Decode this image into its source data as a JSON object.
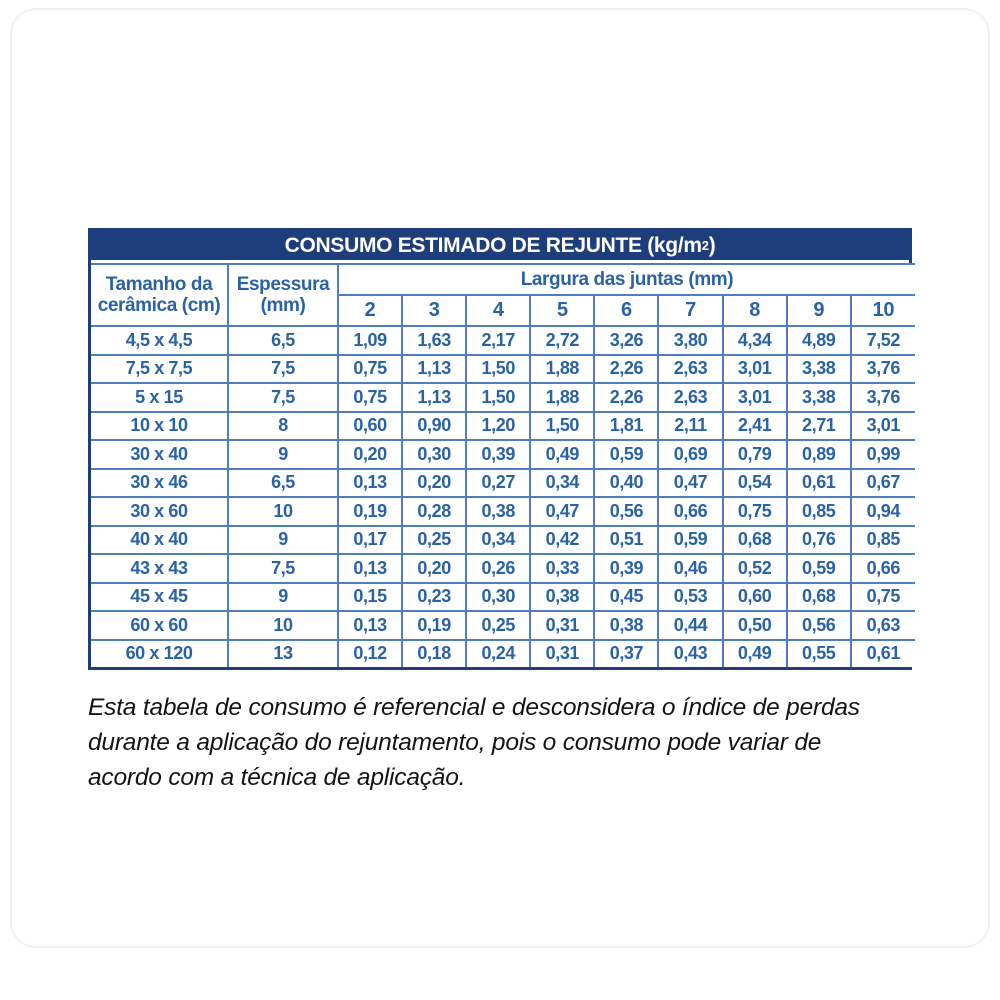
{
  "table": {
    "title": "CONSUMO ESTIMADO DE REJUNTE (kg/m",
    "title_sup": "2",
    "title_end": ")",
    "size_header": "Tamanho da\ncerâmica (cm)",
    "thickness_header": "Espessura\n(mm)",
    "joint_group_header": "Largura das juntas (mm)",
    "joint_widths": [
      "2",
      "3",
      "4",
      "5",
      "6",
      "7",
      "8",
      "9",
      "10"
    ],
    "rows": [
      {
        "size": "4,5 x 4,5",
        "thickness": "6,5",
        "values": [
          "1,09",
          "1,63",
          "2,17",
          "2,72",
          "3,26",
          "3,80",
          "4,34",
          "4,89",
          "7,52"
        ]
      },
      {
        "size": "7,5 x 7,5",
        "thickness": "7,5",
        "values": [
          "0,75",
          "1,13",
          "1,50",
          "1,88",
          "2,26",
          "2,63",
          "3,01",
          "3,38",
          "3,76"
        ]
      },
      {
        "size": "5 x 15",
        "thickness": "7,5",
        "values": [
          "0,75",
          "1,13",
          "1,50",
          "1,88",
          "2,26",
          "2,63",
          "3,01",
          "3,38",
          "3,76"
        ]
      },
      {
        "size": "10 x 10",
        "thickness": "8",
        "values": [
          "0,60",
          "0,90",
          "1,20",
          "1,50",
          "1,81",
          "2,11",
          "2,41",
          "2,71",
          "3,01"
        ]
      },
      {
        "size": "30 x 40",
        "thickness": "9",
        "values": [
          "0,20",
          "0,30",
          "0,39",
          "0,49",
          "0,59",
          "0,69",
          "0,79",
          "0,89",
          "0,99"
        ]
      },
      {
        "size": "30 x 46",
        "thickness": "6,5",
        "values": [
          "0,13",
          "0,20",
          "0,27",
          "0,34",
          "0,40",
          "0,47",
          "0,54",
          "0,61",
          "0,67"
        ]
      },
      {
        "size": "30 x 60",
        "thickness": "10",
        "values": [
          "0,19",
          "0,28",
          "0,38",
          "0,47",
          "0,56",
          "0,66",
          "0,75",
          "0,85",
          "0,94"
        ]
      },
      {
        "size": "40 x 40",
        "thickness": "9",
        "values": [
          "0,17",
          "0,25",
          "0,34",
          "0,42",
          "0,51",
          "0,59",
          "0,68",
          "0,76",
          "0,85"
        ]
      },
      {
        "size": "43 x 43",
        "thickness": "7,5",
        "values": [
          "0,13",
          "0,20",
          "0,26",
          "0,33",
          "0,39",
          "0,46",
          "0,52",
          "0,59",
          "0,66"
        ]
      },
      {
        "size": "45 x 45",
        "thickness": "9",
        "values": [
          "0,15",
          "0,23",
          "0,30",
          "0,38",
          "0,45",
          "0,53",
          "0,60",
          "0,68",
          "0,75"
        ]
      },
      {
        "size": "60 x 60",
        "thickness": "10",
        "values": [
          "0,13",
          "0,19",
          "0,25",
          "0,31",
          "0,38",
          "0,44",
          "0,50",
          "0,56",
          "0,63"
        ]
      },
      {
        "size": "60 x 120",
        "thickness": "13",
        "values": [
          "0,12",
          "0,18",
          "0,24",
          "0,31",
          "0,37",
          "0,43",
          "0,49",
          "0,55",
          "0,61"
        ]
      }
    ],
    "colors": {
      "header_bg": "#1e3d7b",
      "grid_border": "#4d7fc0",
      "text_blue": "#2a62a6"
    }
  },
  "footnote": {
    "lines": [
      "Esta tabela de consumo é referencial e desconsidera o índice de perdas",
      "durante a aplicação do rejuntamento, pois o consumo pode variar de",
      "acordo com a técnica de aplicação."
    ]
  }
}
